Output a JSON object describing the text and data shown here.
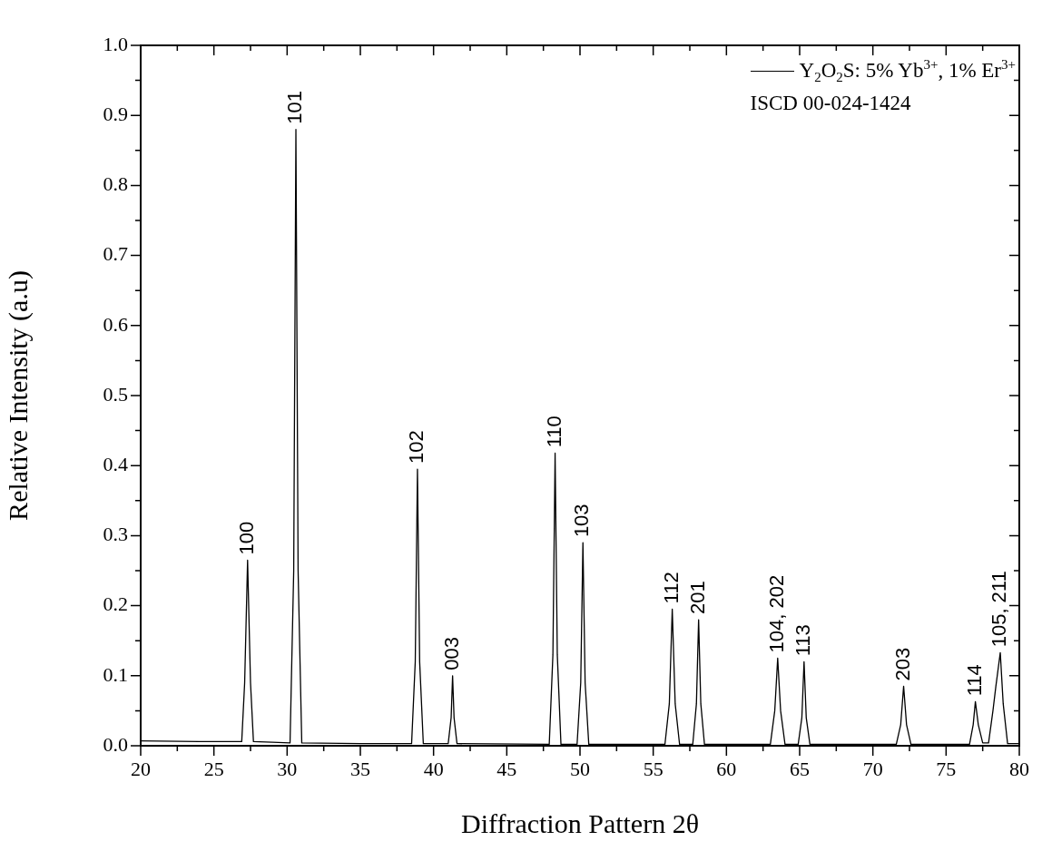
{
  "chart_data": {
    "type": "line",
    "xlabel": "Diffraction Pattern 2θ",
    "ylabel": "Relative Intensity (a.u)",
    "xlim": [
      20,
      80
    ],
    "ylim": [
      0,
      1.0
    ],
    "xticks": [
      20,
      {
        "value": 22.5,
        "label": null
      },
      25,
      {
        "value": 27.5,
        "label": null
      },
      30,
      {
        "value": 32.5,
        "label": null
      },
      35,
      {
        "value": 37.5,
        "label": null
      },
      40,
      {
        "value": 42.5,
        "label": null
      },
      45,
      {
        "value": 47.5,
        "label": null
      },
      50,
      {
        "value": 52.5,
        "label": null
      },
      55,
      {
        "value": 57.5,
        "label": null
      },
      60,
      {
        "value": 62.5,
        "label": null
      },
      65,
      {
        "value": 67.5,
        "label": null
      },
      70,
      {
        "value": 72.5,
        "label": null
      },
      75,
      {
        "value": 77.5,
        "label": null
      },
      80
    ],
    "yticks": [
      {
        "value": 0,
        "label": "0.0"
      },
      {
        "value": 0.05,
        "label": null
      },
      0.1,
      {
        "value": 0.15,
        "label": null
      },
      0.2,
      {
        "value": 0.25,
        "label": null
      },
      0.3,
      {
        "value": 0.35,
        "label": null
      },
      0.4,
      {
        "value": 0.45,
        "label": null
      },
      0.5,
      {
        "value": 0.55,
        "label": null
      },
      0.6,
      {
        "value": 0.65,
        "label": null
      },
      0.7,
      {
        "value": 0.75,
        "label": null
      },
      0.8,
      {
        "value": 0.85,
        "label": null
      },
      0.9,
      {
        "value": 0.95,
        "label": null
      },
      {
        "value": 1,
        "label": "1.0"
      }
    ],
    "grid": false,
    "legend": "top right",
    "marker": "none",
    "line_style": "solid",
    "series": [
      {
        "name": "Y$_{2}$O$_{2}$S: 5% Yb$^{3+}$, 1% Er$^{3+}$",
        "color": "#000000",
        "x": [
          20,
          24,
          26.8,
          26.9,
          27.1,
          27.3,
          27.5,
          27.7,
          29,
          30.2,
          30.45,
          30.6,
          30.75,
          31.0,
          35,
          38.5,
          38.75,
          38.9,
          39.05,
          39.3,
          41.0,
          41.2,
          41.3,
          41.4,
          41.6,
          47.9,
          48.15,
          48.3,
          48.45,
          48.7,
          49.8,
          50.05,
          50.2,
          50.35,
          50.6,
          53,
          55.8,
          56.1,
          56.3,
          56.5,
          56.8,
          57.7,
          57.95,
          58.1,
          58.25,
          58.5,
          61,
          63.0,
          63.3,
          63.5,
          63.7,
          64.0,
          64.9,
          65.15,
          65.3,
          65.45,
          65.7,
          69,
          71.6,
          71.9,
          72.1,
          72.3,
          72.6,
          75,
          76.6,
          76.85,
          77.0,
          77.2,
          77.5,
          77.9,
          78.2,
          78.4,
          78.7,
          78.9,
          79.2,
          80
        ],
        "values": [
          0.007,
          0.006,
          0.006,
          0.006,
          0.09,
          0.265,
          0.09,
          0.006,
          0.005,
          0.004,
          0.25,
          0.88,
          0.25,
          0.004,
          0.003,
          0.003,
          0.12,
          0.395,
          0.12,
          0.003,
          0.003,
          0.04,
          0.1,
          0.04,
          0.003,
          0.002,
          0.13,
          0.418,
          0.13,
          0.002,
          0.002,
          0.09,
          0.29,
          0.09,
          0.002,
          0.002,
          0.002,
          0.06,
          0.195,
          0.06,
          0.002,
          0.002,
          0.06,
          0.18,
          0.06,
          0.002,
          0.002,
          0.002,
          0.05,
          0.125,
          0.05,
          0.002,
          0.002,
          0.04,
          0.12,
          0.04,
          0.002,
          0.002,
          0.002,
          0.03,
          0.085,
          0.03,
          0.002,
          0.002,
          0.002,
          0.03,
          0.063,
          0.03,
          0.004,
          0.004,
          0.05,
          0.085,
          0.133,
          0.06,
          0.003,
          0.003
        ]
      }
    ],
    "annotations": [
      {
        "text": "100",
        "x": 27.3,
        "y": 0.265
      },
      {
        "text": "101",
        "x": 30.6,
        "y": 0.88
      },
      {
        "text": "102",
        "x": 38.9,
        "y": 0.395
      },
      {
        "text": "003",
        "x": 41.3,
        "y": 0.1
      },
      {
        "text": "110",
        "x": 48.3,
        "y": 0.418
      },
      {
        "text": "103",
        "x": 50.2,
        "y": 0.29
      },
      {
        "text": "112",
        "x": 56.3,
        "y": 0.195
      },
      {
        "text": "201",
        "x": 58.1,
        "y": 0.18
      },
      {
        "text": "104, 202",
        "x": 63.5,
        "y": 0.125
      },
      {
        "text": "113",
        "x": 65.3,
        "y": 0.12
      },
      {
        "text": "203",
        "x": 72.1,
        "y": 0.085
      },
      {
        "text": "114",
        "x": 77.0,
        "y": 0.063
      },
      {
        "text": "105, 211",
        "x": 78.7,
        "y": 0.133
      },
      "ISCD 00-024-1424"
    ]
  }
}
